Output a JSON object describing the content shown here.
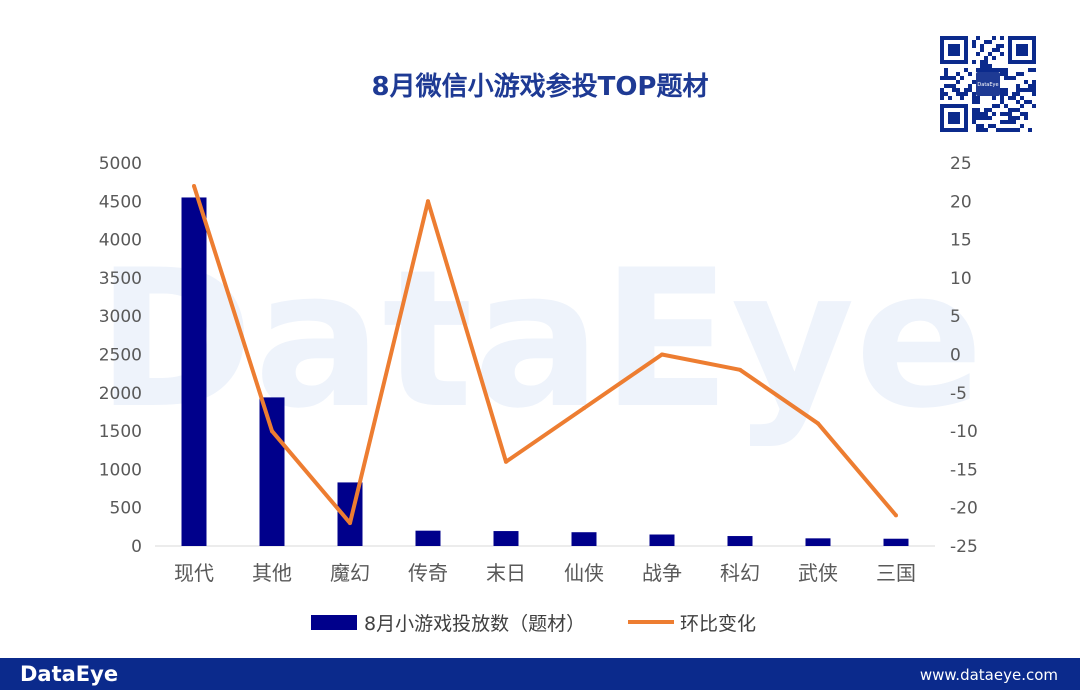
{
  "header": {
    "title": "8月微信小游戏参投TOP题材"
  },
  "watermark": "DataEye",
  "footer": {
    "brand": "DataEye",
    "url": "www.dataeye.com"
  },
  "qr": {
    "label": "DataEye"
  },
  "colors": {
    "bar": "#00008b",
    "line": "#ed7d31",
    "title": "#1e3a94",
    "footer": "#0b2a8c"
  },
  "chart_data": {
    "type": "bar",
    "title": "8月微信小游戏参投TOP题材",
    "categories": [
      "现代",
      "其他",
      "魔幻",
      "传奇",
      "末日",
      "仙侠",
      "战争",
      "科幻",
      "武侠",
      "三国"
    ],
    "series": [
      {
        "name": "8月小游戏投放数（题材）",
        "type": "bar",
        "axis": "left",
        "values": [
          4550,
          1940,
          830,
          200,
          195,
          180,
          150,
          130,
          100,
          95
        ]
      },
      {
        "name": "环比变化",
        "type": "line",
        "axis": "right",
        "values": [
          22,
          -10,
          -22,
          20,
          -14,
          -7,
          0,
          -2,
          -9,
          -21
        ]
      }
    ],
    "y_left": {
      "min": 0,
      "max": 5000,
      "ticks": [
        "0",
        "500",
        "1000",
        "1500",
        "2000",
        "2500",
        "3000",
        "3500",
        "4000",
        "4500",
        "5000"
      ]
    },
    "y_right": {
      "min": -25,
      "max": 25,
      "ticks": [
        "-25",
        "-20",
        "-15",
        "-10",
        "-5",
        "0",
        "5",
        "10",
        "15",
        "20",
        "25"
      ]
    },
    "legend": "bottom",
    "grid": false
  }
}
